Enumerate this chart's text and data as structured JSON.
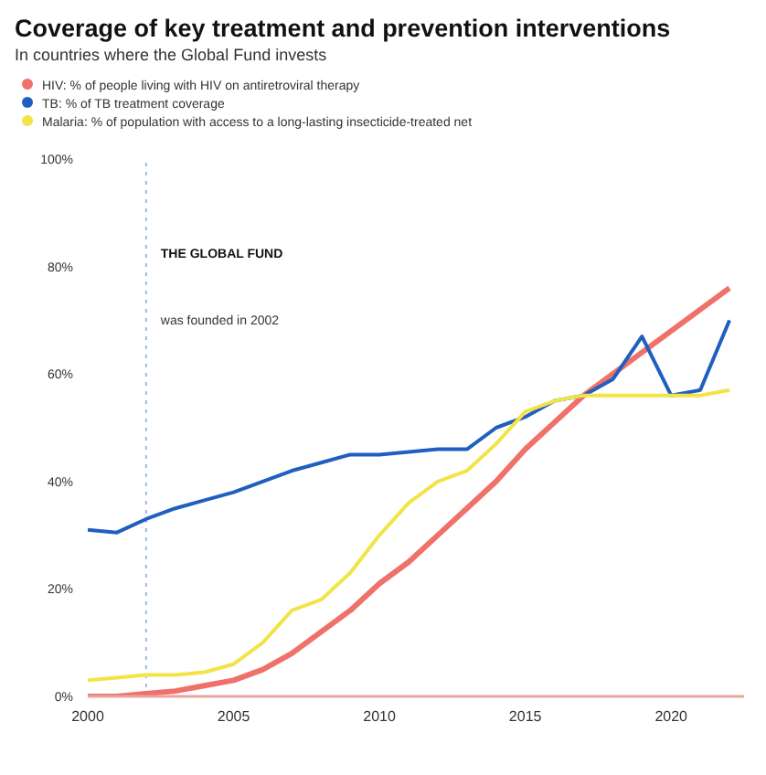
{
  "chart_data": {
    "type": "line",
    "title": "Coverage of key treatment and prevention interventions",
    "subtitle": "In countries where the Global Fund invests",
    "x": [
      2000,
      2001,
      2002,
      2003,
      2004,
      2005,
      2006,
      2007,
      2008,
      2009,
      2010,
      2011,
      2012,
      2013,
      2014,
      2015,
      2016,
      2017,
      2018,
      2019,
      2020,
      2021,
      2022
    ],
    "series": [
      {
        "name": "HIV: % of people living with HIV on antiretroviral therapy",
        "color": "#f0706a",
        "values": [
          0,
          0,
          0.5,
          1,
          2,
          3,
          5,
          8,
          12,
          16,
          21,
          25,
          30,
          35,
          40,
          46,
          51,
          56,
          60,
          64,
          68,
          72,
          76
        ]
      },
      {
        "name": "TB: % of TB treatment coverage",
        "color": "#1f5fbf",
        "values": [
          31,
          30.5,
          33,
          35,
          36.5,
          38,
          40,
          42,
          43.5,
          45,
          45,
          45.5,
          46,
          46,
          50,
          52,
          55,
          56,
          59,
          67,
          56,
          57,
          70
        ]
      },
      {
        "name": "Malaria: % of population with access to a long-lasting insecticide-treated net",
        "color": "#f2e447",
        "values": [
          3,
          3.5,
          4,
          4,
          4.5,
          6,
          10,
          16,
          18,
          23,
          30,
          36,
          40,
          42,
          47,
          53,
          55,
          56,
          56,
          56,
          56,
          56,
          57
        ]
      }
    ],
    "xlim": [
      2000,
      2022.5
    ],
    "xticks": [
      2000,
      2005,
      2010,
      2015,
      2020
    ],
    "ylim": [
      0,
      100
    ],
    "yticks": [
      {
        "value": 0,
        "label": "0%"
      },
      {
        "value": 20,
        "label": "20%"
      },
      {
        "value": 40,
        "label": "40%"
      },
      {
        "value": 60,
        "label": "60%"
      },
      {
        "value": 80,
        "label": "80%"
      },
      {
        "value": 100,
        "label": "100%"
      }
    ],
    "ref_lines": [
      {
        "axis": "x",
        "value": 2002,
        "label": "THE GLOBAL FUND",
        "color": "#9bbbe0",
        "line_style": "dotted"
      }
    ],
    "annotations": [
      {
        "text": "was founded in 2002",
        "x": 2002,
        "y": 70
      }
    ],
    "legend": "top left",
    "grid": false,
    "marker": "none",
    "line_style": "solid"
  }
}
